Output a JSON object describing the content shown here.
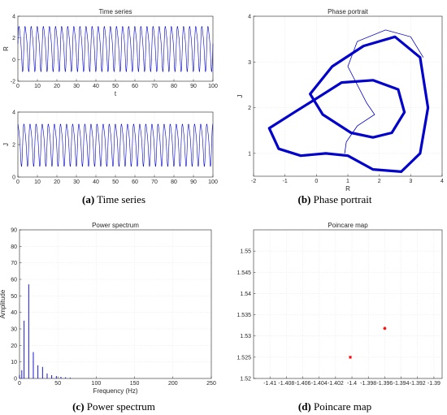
{
  "chart_data": [
    {
      "id": "a-R",
      "type": "line",
      "title": "Time series",
      "xlabel": "t",
      "ylabel": "R",
      "xlim": [
        0,
        100
      ],
      "ylim": [
        -2,
        4
      ],
      "xticks": [
        "0",
        "10",
        "20",
        "30",
        "40",
        "50",
        "60",
        "70",
        "80",
        "90",
        "100"
      ],
      "yticks": [
        "-2",
        "0",
        "2",
        "4"
      ],
      "grid": true,
      "series": [
        {
          "name": "",
          "min": -1.2,
          "max": 3.6,
          "oscillations": 32,
          "color": "#0000cc"
        }
      ]
    },
    {
      "id": "a-J",
      "type": "line",
      "title": "",
      "xlabel": "",
      "ylabel": "J",
      "xlim": [
        0,
        100
      ],
      "ylim": [
        0,
        4
      ],
      "xticks": [
        "0",
        "10",
        "20",
        "30",
        "40",
        "50",
        "60",
        "70",
        "80",
        "90",
        "100"
      ],
      "yticks": [
        "0",
        "2",
        "4"
      ],
      "grid": true,
      "series": [
        {
          "name": "",
          "min": 0.6,
          "max": 3.6,
          "oscillations": 32,
          "color": "#0000cc"
        }
      ]
    },
    {
      "id": "b",
      "type": "line",
      "title": "Phase portrait",
      "xlabel": "R",
      "ylabel": "J",
      "xlim": [
        -2,
        4
      ],
      "ylim": [
        0.5,
        4
      ],
      "xticks": [
        "-2",
        "-1",
        "0",
        "1",
        "2",
        "3",
        "4"
      ],
      "yticks": [
        "1",
        "2",
        "3",
        "4"
      ],
      "grid": true,
      "series": [
        {
          "name": "",
          "color": "#0000cc",
          "outer_loop": [
            [
              -1.5,
              1.55
            ],
            [
              -1.2,
              1.1
            ],
            [
              -0.5,
              0.95
            ],
            [
              0.3,
              1.0
            ],
            [
              1.0,
              0.95
            ],
            [
              1.8,
              0.65
            ],
            [
              2.7,
              0.6
            ],
            [
              3.3,
              1.0
            ],
            [
              3.55,
              2.0
            ],
            [
              3.3,
              3.1
            ],
            [
              2.5,
              3.55
            ],
            [
              1.5,
              3.35
            ],
            [
              0.5,
              2.9
            ],
            [
              -0.2,
              2.3
            ],
            [
              0.2,
              1.85
            ],
            [
              1.1,
              1.45
            ],
            [
              1.8,
              1.35
            ],
            [
              2.4,
              1.45
            ],
            [
              2.8,
              1.9
            ],
            [
              2.6,
              2.4
            ],
            [
              1.8,
              2.6
            ],
            [
              0.8,
              2.55
            ],
            [
              0.0,
              2.2
            ],
            [
              -0.7,
              1.9
            ],
            [
              -1.5,
              1.55
            ]
          ],
          "transient": [
            [
              0.9,
              1.0
            ],
            [
              0.95,
              1.25
            ],
            [
              1.3,
              1.6
            ],
            [
              1.85,
              1.85
            ],
            [
              1.6,
              2.1
            ],
            [
              1.0,
              2.9
            ],
            [
              1.3,
              3.45
            ],
            [
              2.2,
              3.7
            ],
            [
              3.0,
              3.55
            ],
            [
              3.4,
              3.1
            ]
          ]
        }
      ]
    },
    {
      "id": "c",
      "type": "bar",
      "title": "Power spectrum",
      "xlabel": "Frequency (Hz)",
      "ylabel": "Amplitude",
      "xlim": [
        0,
        250
      ],
      "ylim": [
        0,
        90
      ],
      "xticks": [
        "0",
        "50",
        "100",
        "150",
        "200",
        "250"
      ],
      "yticks": [
        "0",
        "10",
        "20",
        "30",
        "40",
        "50",
        "60",
        "70",
        "80",
        "90"
      ],
      "grid": true,
      "x": [
        0,
        3,
        6,
        12,
        18,
        24,
        30,
        36,
        42,
        48,
        54,
        60,
        66
      ],
      "values": [
        2,
        5,
        35,
        57,
        16,
        8,
        7,
        3,
        2,
        1.5,
        1,
        0.7,
        0.5
      ],
      "color": "#0000cc"
    },
    {
      "id": "d",
      "type": "scatter",
      "title": "Poincare map",
      "xlabel": "",
      "ylabel": "",
      "xlim": [
        -1.412,
        -1.389
      ],
      "ylim": [
        1.52,
        1.555
      ],
      "xticks": [
        "-1.41",
        "-1.408",
        "-1.406",
        "-1.404",
        "-1.402",
        "-1.4",
        "-1.398",
        "-1.396",
        "-1.394",
        "-1.392",
        "-1.39"
      ],
      "xtick_values": [
        -1.41,
        -1.408,
        -1.406,
        -1.404,
        -1.402,
        -1.4,
        -1.398,
        -1.396,
        -1.394,
        -1.392,
        -1.39
      ],
      "yticks": [
        "1.52",
        "1.525",
        "1.53",
        "1.535",
        "1.54",
        "1.545",
        "1.55"
      ],
      "ytick_values": [
        1.52,
        1.525,
        1.53,
        1.535,
        1.54,
        1.545,
        1.55
      ],
      "grid": true,
      "points": [
        [
          -1.4002,
          1.525
        ],
        [
          -1.396,
          1.5318
        ]
      ],
      "color": "#ff0000"
    }
  ],
  "captions": [
    {
      "label": "(a)",
      "text": " Time series"
    },
    {
      "label": "(b)",
      "text": " Phase portrait"
    },
    {
      "label": "(c)",
      "text": " Power spectrum"
    },
    {
      "label": "(d)",
      "text": " Poincare map"
    }
  ]
}
